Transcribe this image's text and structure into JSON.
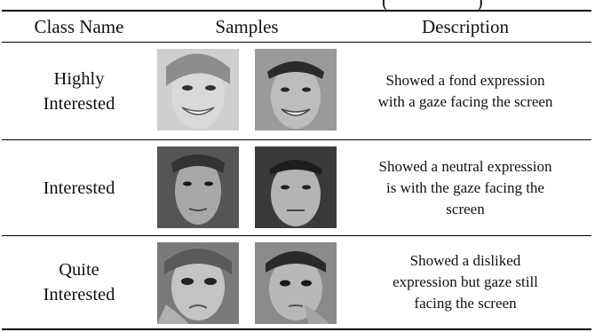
{
  "caption_fragment": "(                   )",
  "table": {
    "headers": {
      "class_name": "Class Name",
      "samples": "Samples",
      "description": "Description"
    },
    "rows": [
      {
        "class_name": "Highly\nInterested",
        "description": "Showed a fond expression\nwith a gaze facing the screen"
      },
      {
        "class_name": "Interested",
        "description": "Showed a neutral expression\nis with the gaze facing the\nscreen"
      },
      {
        "class_name": "Quite\nInterested",
        "description": "Showed a disliked\nexpression but gaze still\nfacing the screen"
      }
    ]
  }
}
